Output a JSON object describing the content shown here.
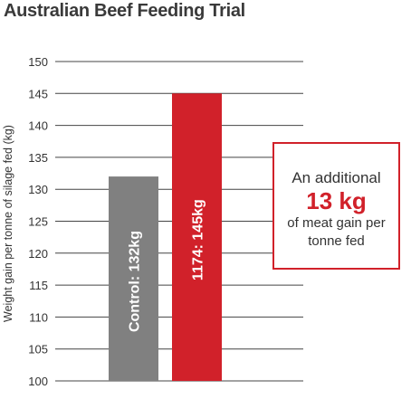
{
  "title": "Australian Beef Feeding Trial",
  "chart_data": {
    "type": "bar",
    "ylabel": "Weight gain per tonne of silage fed (kg)",
    "ylim": [
      100,
      150
    ],
    "yticks": [
      100,
      105,
      110,
      115,
      120,
      125,
      130,
      135,
      140,
      145,
      150
    ],
    "grid": true,
    "bars": [
      {
        "label": "Control: 132kg",
        "value": 132,
        "color": "#808080"
      },
      {
        "label": "1174: 145kg",
        "value": 145,
        "color": "#d1212a"
      }
    ]
  },
  "callout": {
    "line1": "An additional",
    "highlight": "13 kg",
    "line2": "of meat gain per",
    "line3": "tonne fed"
  }
}
